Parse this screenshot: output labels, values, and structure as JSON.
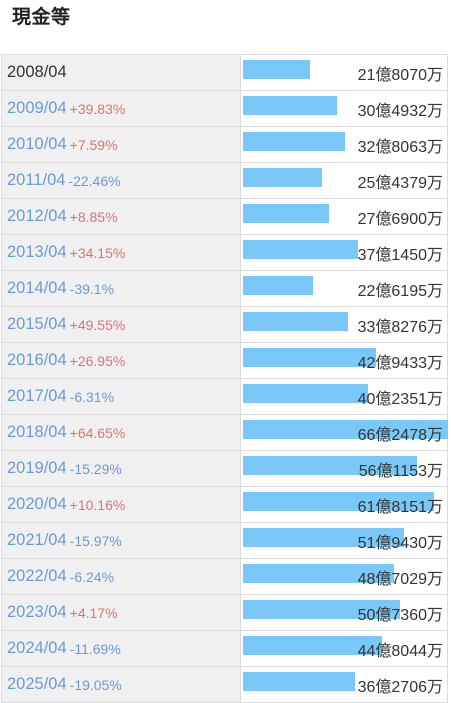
{
  "title": "現金等",
  "max_value_oku": 66.2478,
  "rows": [
    {
      "year": "2008/04",
      "change": "",
      "value": "21億8070万",
      "amount_oku": 21.807
    },
    {
      "year": "2009/04",
      "change": "+39.83%",
      "value": "30億4932万",
      "amount_oku": 30.4932
    },
    {
      "year": "2010/04",
      "change": "+7.59%",
      "value": "32億8063万",
      "amount_oku": 32.8063
    },
    {
      "year": "2011/04",
      "change": "-22.46%",
      "value": "25億4379万",
      "amount_oku": 25.4379
    },
    {
      "year": "2012/04",
      "change": "+8.85%",
      "value": "27億6900万",
      "amount_oku": 27.69
    },
    {
      "year": "2013/04",
      "change": "+34.15%",
      "value": "37億1450万",
      "amount_oku": 37.145
    },
    {
      "year": "2014/04",
      "change": "-39.1%",
      "value": "22億6195万",
      "amount_oku": 22.6195
    },
    {
      "year": "2015/04",
      "change": "+49.55%",
      "value": "33億8276万",
      "amount_oku": 33.8276
    },
    {
      "year": "2016/04",
      "change": "+26.95%",
      "value": "42億9433万",
      "amount_oku": 42.9433
    },
    {
      "year": "2017/04",
      "change": "-6.31%",
      "value": "40億2351万",
      "amount_oku": 40.2351
    },
    {
      "year": "2018/04",
      "change": "+64.65%",
      "value": "66億2478万",
      "amount_oku": 66.2478
    },
    {
      "year": "2019/04",
      "change": "-15.29%",
      "value": "56億1153万",
      "amount_oku": 56.1153
    },
    {
      "year": "2020/04",
      "change": "+10.16%",
      "value": "61億8151万",
      "amount_oku": 61.8151
    },
    {
      "year": "2021/04",
      "change": "-15.97%",
      "value": "51億9430万",
      "amount_oku": 51.943
    },
    {
      "year": "2022/04",
      "change": "-6.24%",
      "value": "48億7029万",
      "amount_oku": 48.7029
    },
    {
      "year": "2023/04",
      "change": "+4.17%",
      "value": "50億7360万",
      "amount_oku": 50.736
    },
    {
      "year": "2024/04",
      "change": "-11.69%",
      "value": "44億8044万",
      "amount_oku": 44.8044
    },
    {
      "year": "2025/04",
      "change": "-19.05%",
      "value": "36億2706万",
      "amount_oku": 36.2706
    }
  ],
  "colors": {
    "bar": "#7ac8f7",
    "positive_change": "#d97474",
    "negative_change": "#6b9ad6"
  }
}
